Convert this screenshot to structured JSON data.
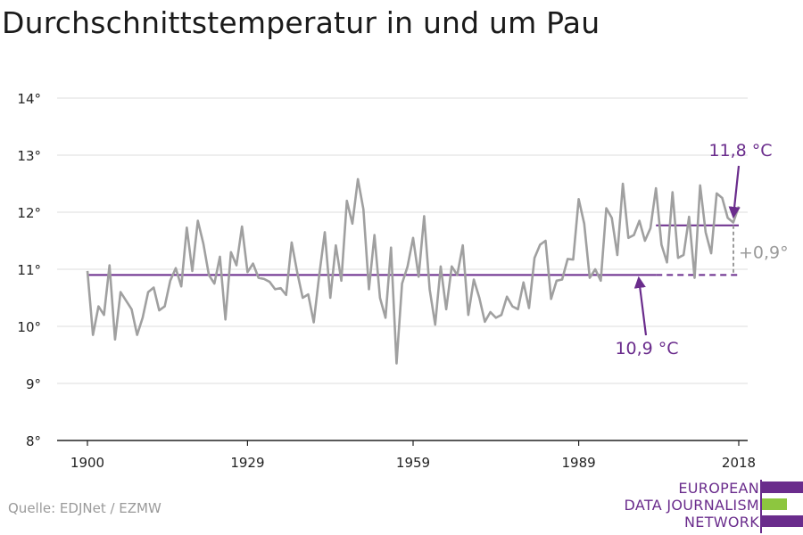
{
  "header": {
    "title": "Durchschnittstemperatur in und um Pau"
  },
  "footer": {
    "source": "Quelle: EDJNet / EZMW"
  },
  "logo": {
    "lines": [
      "EUROPEAN",
      "DATA JOURNALISM",
      "NETWORK"
    ],
    "colors": [
      "#6a2c8c",
      "#8dc63f",
      "#6a2c8c"
    ]
  },
  "chart_data": {
    "type": "line",
    "title": "Durchschnittstemperatur in und um Pau",
    "xlabel": "",
    "ylabel": "",
    "xlim": [
      1900,
      2018
    ],
    "ylim": [
      8,
      14
    ],
    "x_ticks": [
      1900,
      1929,
      1959,
      1989,
      2018
    ],
    "y_ticks": [
      8,
      9,
      10,
      11,
      12,
      13,
      14
    ],
    "y_tick_labels": [
      "8°",
      "9°",
      "10°",
      "11°",
      "12°",
      "13°",
      "14°"
    ],
    "grid": true,
    "colors": {
      "series": "#a0a0a0",
      "reference": "#6a2c8c",
      "difference": "#9a9a9a"
    },
    "series": [
      {
        "x": [
          1900,
          1901,
          1902,
          1903,
          1904,
          1905,
          1906,
          1907,
          1908,
          1909,
          1910,
          1911,
          1912,
          1913,
          1914,
          1915,
          1916,
          1917,
          1918,
          1919,
          1920,
          1921,
          1922,
          1923,
          1924,
          1925,
          1926,
          1927,
          1928,
          1929,
          1930,
          1931,
          1932,
          1933,
          1934,
          1935,
          1936,
          1937,
          1938,
          1939,
          1940,
          1941,
          1942,
          1943,
          1944,
          1945,
          1946,
          1947,
          1948,
          1949,
          1950,
          1951,
          1952,
          1953,
          1954,
          1955,
          1956,
          1957,
          1958,
          1959,
          1960,
          1961,
          1962,
          1963,
          1964,
          1965,
          1966,
          1967,
          1968,
          1969,
          1970,
          1971,
          1972,
          1973,
          1974,
          1975,
          1976,
          1977,
          1978,
          1979,
          1980,
          1981,
          1982,
          1983,
          1984,
          1985,
          1986,
          1987,
          1988,
          1989,
          1990,
          1991,
          1992,
          1993,
          1994,
          1995,
          1996,
          1997,
          1998,
          1999,
          2000,
          2001,
          2002,
          2003,
          2004,
          2005,
          2006,
          2007,
          2008,
          2009,
          2010,
          2011,
          2012,
          2013,
          2014,
          2015,
          2016,
          2017,
          2018
        ],
        "values": [
          10.97,
          9.85,
          10.35,
          10.2,
          11.07,
          9.77,
          10.6,
          10.45,
          10.3,
          9.85,
          10.15,
          10.6,
          10.68,
          10.28,
          10.35,
          10.8,
          11.02,
          10.7,
          11.73,
          10.97,
          11.85,
          11.45,
          10.9,
          10.75,
          11.22,
          10.12,
          11.3,
          11.07,
          11.75,
          10.95,
          11.1,
          10.85,
          10.83,
          10.78,
          10.65,
          10.67,
          10.55,
          11.47,
          10.95,
          10.5,
          10.56,
          10.07,
          10.9,
          11.65,
          10.5,
          11.42,
          10.8,
          12.2,
          11.8,
          12.58,
          12.05,
          10.65,
          11.6,
          10.5,
          10.15,
          11.38,
          9.35,
          10.75,
          11.05,
          11.55,
          10.87,
          11.93,
          10.65,
          10.03,
          11.05,
          10.3,
          11.05,
          10.9,
          11.42,
          10.2,
          10.82,
          10.5,
          10.08,
          10.25,
          10.15,
          10.2,
          10.52,
          10.35,
          10.3,
          10.77,
          10.32,
          11.2,
          11.43,
          11.5,
          10.48,
          10.8,
          10.82,
          11.18,
          11.17,
          12.23,
          11.8,
          10.85,
          11.0,
          10.8,
          12.07,
          11.9,
          11.25,
          12.5,
          11.55,
          11.6,
          11.85,
          11.5,
          11.72,
          12.42,
          11.43,
          11.12,
          12.35,
          11.2,
          11.25,
          11.92,
          10.85,
          12.47,
          11.65,
          11.28,
          12.33,
          12.25,
          11.9,
          11.82,
          12.1
        ]
      }
    ],
    "reference_lines": [
      {
        "label": "10,9 °C",
        "value": 10.9,
        "x_start": 1900,
        "x_end": 2018,
        "solid_until": 2003
      },
      {
        "label": "11,8 °C",
        "value": 11.77,
        "x_start": 2003,
        "x_end": 2018
      }
    ],
    "difference_label": "+0,9°"
  }
}
